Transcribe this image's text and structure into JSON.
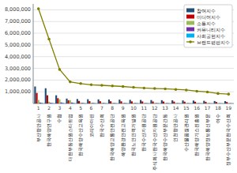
{
  "chart_data": {
    "type": "bar",
    "categories": [
      "부산항만공사",
      "한국해양연구원",
      "수협",
      "대한부동산원스타트업",
      "한국해양수산교육원",
      "코리아마린",
      "한국수산회",
      "한국해양교통안전공단",
      "해양환경안전교육원",
      "한국노인인력개발원",
      "한국수산자원공단",
      "주식회사한국수산자원공단",
      "한국해양수산부문간동",
      "인천항만공사",
      "수산물품질관리원",
      "한국해양기쇼진흥원",
      "한국해양정보통신부문",
      "여수",
      "정부수산부문한국수산회"
    ],
    "xticks": [
      1,
      2,
      3,
      4,
      5,
      6,
      7,
      8,
      9,
      10,
      11,
      12,
      13,
      14,
      15,
      16,
      17,
      18,
      19
    ],
    "series": [
      {
        "name": "참여지수",
        "type": "bar",
        "color": "#1F4E79",
        "values": [
          1450000,
          1300000,
          700000,
          420000,
          380000,
          360000,
          350000,
          340000,
          330000,
          310000,
          300000,
          290000,
          280000,
          270000,
          260000,
          250000,
          230000,
          210000,
          200000
        ]
      },
      {
        "name": "미디어지수",
        "type": "bar",
        "color": "#C00000",
        "values": [
          900000,
          700000,
          450000,
          280000,
          220000,
          200000,
          195000,
          190000,
          185000,
          180000,
          175000,
          170000,
          165000,
          160000,
          155000,
          150000,
          140000,
          130000,
          125000
        ]
      },
      {
        "name": "소통지수",
        "type": "bar",
        "color": "#9BBB59",
        "values": [
          300000,
          150000,
          350000,
          280000,
          80000,
          60000,
          55000,
          50000,
          45000,
          40000,
          35000,
          30000,
          25000,
          20000,
          18000,
          15000,
          12000,
          10000,
          8000
        ]
      },
      {
        "name": "커뮤니티지수",
        "type": "bar",
        "color": "#7030A0",
        "values": [
          80000,
          60000,
          90000,
          80000,
          50000,
          45000,
          40000,
          38000,
          36000,
          34000,
          32000,
          30000,
          28000,
          26000,
          24000,
          22000,
          20000,
          18000,
          16000
        ]
      },
      {
        "name": "사회공헌지수",
        "type": "bar",
        "color": "#00B0F0",
        "values": [
          60000,
          50000,
          70000,
          65000,
          40000,
          38000,
          36000,
          34000,
          32000,
          30000,
          28000,
          26000,
          24000,
          22000,
          20000,
          18000,
          16000,
          14000,
          12000
        ]
      },
      {
        "name": "브랜드평판지수",
        "type": "line",
        "color": "#808000",
        "marker": "circle",
        "values": [
          8100000,
          5500000,
          2900000,
          1850000,
          1700000,
          1600000,
          1550000,
          1500000,
          1450000,
          1380000,
          1320000,
          1280000,
          1250000,
          1200000,
          1150000,
          1050000,
          980000,
          850000,
          800000
        ]
      }
    ],
    "ylim": [
      0,
      8500000
    ],
    "yticks": [
      {
        "value": 1000000,
        "label": "1,000,000"
      },
      {
        "value": 2000000,
        "label": "2,000,000"
      },
      {
        "value": 3000000,
        "label": "3,000,000"
      },
      {
        "value": 4000000,
        "label": "4,000,000"
      },
      {
        "value": 5000000,
        "label": "5,000,000"
      },
      {
        "value": 6000000,
        "label": "6,000,000"
      },
      {
        "value": 7000000,
        "label": "7,000,000"
      },
      {
        "value": 8000000,
        "label": "8,000,000"
      }
    ],
    "grid": true,
    "legend": "upper right"
  }
}
